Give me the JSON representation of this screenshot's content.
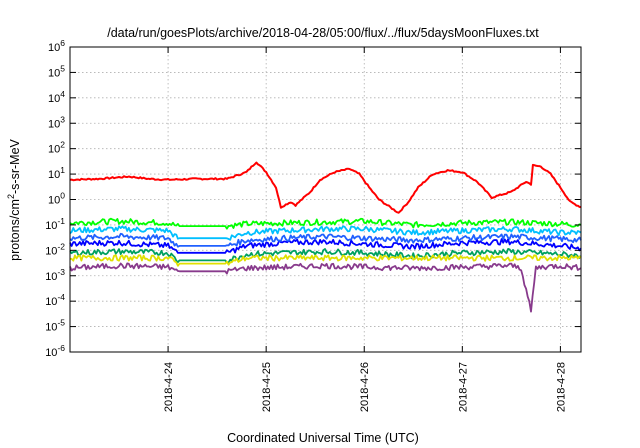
{
  "chart_data": {
    "type": "line",
    "title": "/data/run/goesPlots/archive/2018-04-28/05:00/flux/../flux/5daysMoonFluxes.txt",
    "xlabel": "Coordinated Universal Time (UTC)",
    "ylabel_main": "protons/cm",
    "ylabel_sup": "2",
    "ylabel_rest": "-s-sr-MeV",
    "yscale": "log",
    "ylim_exp": [
      -6,
      6
    ],
    "y_ticks": [
      {
        "base": "10",
        "exp": "-6"
      },
      {
        "base": "10",
        "exp": "-5"
      },
      {
        "base": "10",
        "exp": "-4"
      },
      {
        "base": "10",
        "exp": "-3"
      },
      {
        "base": "10",
        "exp": "-2"
      },
      {
        "base": "10",
        "exp": "-1"
      },
      {
        "base": "10",
        "exp": "0"
      },
      {
        "base": "10",
        "exp": "1"
      },
      {
        "base": "10",
        "exp": "2"
      },
      {
        "base": "10",
        "exp": "3"
      },
      {
        "base": "10",
        "exp": "4"
      },
      {
        "base": "10",
        "exp": "5"
      },
      {
        "base": "10",
        "exp": "6"
      }
    ],
    "x_ticks": [
      "2018-4-24",
      "2018-4-25",
      "2018-4-26",
      "2018-4-27",
      "2018-4-28"
    ],
    "x_range_days": [
      23.0,
      28.21
    ],
    "grid": true,
    "series": [
      {
        "color": "#ff0000",
        "x": [
          23.0,
          23.3,
          23.6,
          23.8,
          24.0,
          24.3,
          24.6,
          24.8,
          24.9,
          25.0,
          25.1,
          25.15,
          25.25,
          25.3,
          25.45,
          25.55,
          25.7,
          25.85,
          25.95,
          26.05,
          26.15,
          26.3,
          26.35,
          26.45,
          26.55,
          26.7,
          26.85,
          27.0,
          27.15,
          27.3,
          27.5,
          27.65,
          27.7,
          27.72,
          27.8,
          27.9,
          28.0,
          28.1,
          28.21
        ],
        "y": [
          6,
          6.5,
          8,
          6.5,
          6,
          6.5,
          6.5,
          12,
          30,
          12,
          3,
          0.5,
          0.8,
          0.6,
          2,
          6,
          12,
          16,
          10,
          3,
          1,
          0.4,
          0.3,
          0.8,
          3,
          10,
          14,
          12,
          5,
          1.2,
          2,
          5,
          4,
          22,
          20,
          10,
          3,
          0.8,
          0.5
        ]
      },
      {
        "color": "#00ff00",
        "x": [
          23.0,
          23.5,
          24.0,
          24.1,
          24.6,
          24.8,
          25.2,
          25.6,
          26.0,
          26.5,
          27.0,
          27.5,
          28.0,
          28.21
        ],
        "y": [
          0.12,
          0.14,
          0.12,
          0.09,
          0.09,
          0.11,
          0.12,
          0.13,
          0.14,
          0.1,
          0.12,
          0.13,
          0.11,
          0.1
        ]
      },
      {
        "color": "#00bfff",
        "x": [
          23.0,
          23.5,
          24.0,
          24.1,
          24.6,
          24.8,
          25.2,
          25.6,
          26.0,
          26.5,
          27.0,
          27.5,
          28.0,
          28.21
        ],
        "y": [
          0.06,
          0.07,
          0.06,
          0.03,
          0.03,
          0.05,
          0.06,
          0.07,
          0.07,
          0.05,
          0.06,
          0.07,
          0.05,
          0.05
        ]
      },
      {
        "color": "#0000ff",
        "x": [
          23.0,
          23.5,
          24.0,
          24.1,
          24.6,
          24.8,
          25.2,
          25.6,
          26.0,
          26.5,
          27.0,
          27.5,
          28.0,
          28.21
        ],
        "y": [
          0.018,
          0.02,
          0.015,
          0.008,
          0.008,
          0.015,
          0.02,
          0.022,
          0.018,
          0.014,
          0.02,
          0.022,
          0.015,
          0.012
        ]
      },
      {
        "color": "#2060ff",
        "x": [
          23.0,
          23.5,
          24.0,
          24.1,
          24.6,
          24.8,
          25.2,
          25.6,
          26.0,
          26.5,
          27.0,
          27.5,
          28.0,
          28.21
        ],
        "y": [
          0.03,
          0.035,
          0.03,
          0.015,
          0.015,
          0.025,
          0.03,
          0.035,
          0.03,
          0.025,
          0.03,
          0.035,
          0.028,
          0.025
        ]
      },
      {
        "color": "#00a060",
        "x": [
          23.0,
          23.5,
          24.0,
          24.1,
          24.6,
          24.8,
          25.2,
          25.6,
          26.0,
          26.5,
          27.0,
          27.5,
          28.0,
          28.21
        ],
        "y": [
          0.008,
          0.009,
          0.008,
          0.004,
          0.004,
          0.007,
          0.008,
          0.009,
          0.008,
          0.006,
          0.008,
          0.009,
          0.007,
          0.006
        ]
      },
      {
        "color": "#e0e000",
        "x": [
          23.0,
          23.5,
          24.0,
          24.1,
          24.6,
          24.8,
          25.2,
          25.6,
          26.0,
          26.5,
          27.0,
          27.5,
          28.0,
          28.21
        ],
        "y": [
          0.005,
          0.005,
          0.005,
          0.003,
          0.003,
          0.005,
          0.005,
          0.005,
          0.005,
          0.005,
          0.005,
          0.005,
          0.005,
          0.005
        ]
      },
      {
        "color": "#883a8c",
        "x": [
          23.0,
          23.5,
          24.0,
          24.1,
          24.6,
          24.8,
          25.2,
          25.6,
          26.0,
          26.5,
          27.0,
          27.5,
          27.6,
          27.7,
          27.75,
          27.8,
          28.0,
          28.21
        ],
        "y": [
          0.002,
          0.0025,
          0.0022,
          0.0015,
          0.0015,
          0.002,
          0.0022,
          0.0025,
          0.0022,
          0.002,
          0.0022,
          0.0025,
          0.002,
          4e-05,
          0.002,
          0.0022,
          0.0025,
          0.002
        ]
      }
    ]
  }
}
